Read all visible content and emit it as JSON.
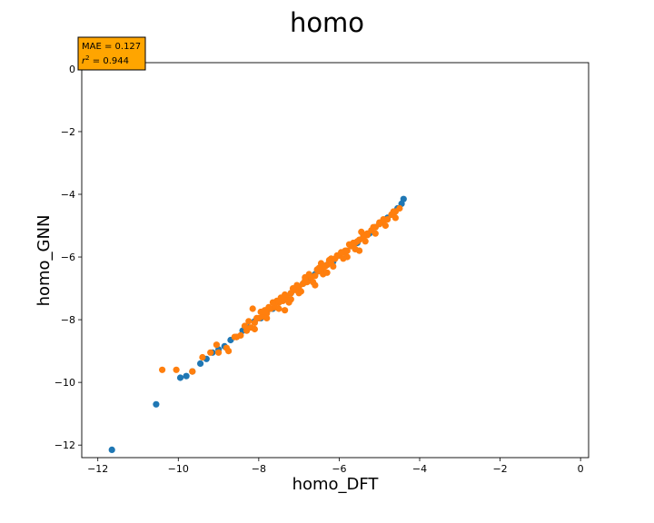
{
  "chart_data": {
    "type": "scatter",
    "title": "homo",
    "xlabel": "homo_DFT",
    "ylabel": "homo_GNN",
    "xlim": [
      -12.4,
      0.2
    ],
    "ylim": [
      -12.4,
      0.2
    ],
    "xticks": [
      -12,
      -10,
      -8,
      -6,
      -4,
      -2,
      0
    ],
    "yticks": [
      -12,
      -10,
      -8,
      -6,
      -4,
      -2,
      0
    ],
    "xtick_labels": [
      "−12",
      "−10",
      "−8",
      "−6",
      "−4",
      "−2",
      "0"
    ],
    "ytick_labels": [
      "−12",
      "−10",
      "−8",
      "−6",
      "−4",
      "−2",
      "0"
    ],
    "grid": false,
    "annotation": {
      "lines": [
        "MAE = 0.127",
        "r² = 0.944"
      ],
      "mae_label": "MAE = 0.127",
      "r2_symbol": "r",
      "r2_exponent": "2",
      "r2_value": " = 0.944",
      "background": "#ffa500"
    },
    "series": [
      {
        "color": "#1f77b4",
        "x": [
          -11.65,
          -10.55,
          -9.95,
          -9.8,
          -9.65,
          -9.45,
          -9.3,
          -9.15,
          -9.0,
          -8.85,
          -8.7,
          -8.55,
          -8.4,
          -8.25,
          -8.1,
          -7.95,
          -7.8,
          -7.65,
          -7.5,
          -7.35,
          -7.2,
          -7.05,
          -6.9,
          -6.75,
          -6.6,
          -6.45,
          -6.3,
          -6.15,
          -6.0,
          -5.85,
          -5.7,
          -5.55,
          -5.4,
          -5.25,
          -5.1,
          -4.95,
          -4.8,
          -4.65,
          -4.55,
          -4.45,
          -4.4
        ],
        "y": [
          -12.15,
          -10.7,
          -9.85,
          -9.8,
          -9.65,
          -9.4,
          -9.25,
          -9.05,
          -8.95,
          -8.85,
          -8.65,
          -8.55,
          -8.35,
          -8.25,
          -8.05,
          -7.95,
          -7.75,
          -7.65,
          -7.45,
          -7.35,
          -7.15,
          -7.05,
          -6.85,
          -6.75,
          -6.55,
          -6.45,
          -6.25,
          -6.15,
          -5.95,
          -5.85,
          -5.65,
          -5.55,
          -5.35,
          -5.25,
          -5.05,
          -4.9,
          -4.75,
          -4.6,
          -4.45,
          -4.3,
          -4.15
        ]
      },
      {
        "color": "#ff7f0e",
        "x": [
          -10.4,
          -10.05,
          -9.65,
          -9.4,
          -9.2,
          -9.05,
          -8.8,
          -8.6,
          -8.45,
          -8.3,
          -8.2,
          -8.1,
          -8.0,
          -7.9,
          -7.8,
          -7.7,
          -7.6,
          -7.5,
          -7.4,
          -7.3,
          -7.2,
          -7.1,
          -7.0,
          -6.9,
          -6.8,
          -6.7,
          -6.6,
          -6.5,
          -6.4,
          -6.3,
          -6.2,
          -6.1,
          -6.0,
          -5.9,
          -5.8,
          -5.7,
          -5.6,
          -5.5,
          -5.4,
          -5.3,
          -5.2,
          -5.1,
          -5.0,
          -4.9,
          -4.8,
          -4.7,
          -4.6,
          -4.5,
          -8.25,
          -7.95,
          -7.6,
          -7.35,
          -7.05,
          -6.85,
          -6.55,
          -6.35,
          -6.05,
          -5.85,
          -5.55,
          -5.3,
          -5.0,
          -4.7,
          -8.1,
          -7.8,
          -7.5,
          -7.2,
          -6.95,
          -6.65,
          -6.4,
          -6.15,
          -5.9,
          -5.6,
          -5.35,
          -5.1,
          -4.85,
          -4.6,
          -8.35,
          -8.05,
          -7.75,
          -7.45,
          -7.15,
          -6.85,
          -6.5,
          -6.2,
          -5.95,
          -5.65,
          -5.4,
          -5.15,
          -4.9,
          -4.65,
          -9.0,
          -8.75,
          -8.55,
          -7.85,
          -7.55,
          -7.25,
          -6.75,
          -6.45,
          -6.25,
          -5.75,
          -5.45,
          -8.15,
          -7.65,
          -7.35,
          -7.0,
          -6.6,
          -6.3,
          -5.8,
          -5.5
        ],
        "y": [
          -9.6,
          -9.6,
          -9.65,
          -9.2,
          -9.05,
          -8.8,
          -8.9,
          -8.55,
          -8.5,
          -8.35,
          -8.25,
          -8.1,
          -7.95,
          -7.9,
          -7.8,
          -7.65,
          -7.6,
          -7.45,
          -7.4,
          -7.3,
          -7.15,
          -7.05,
          -6.95,
          -6.85,
          -6.8,
          -6.65,
          -6.6,
          -6.45,
          -6.35,
          -6.25,
          -6.2,
          -6.05,
          -5.95,
          -5.85,
          -5.8,
          -5.65,
          -5.55,
          -5.45,
          -5.4,
          -5.3,
          -5.15,
          -5.05,
          -4.95,
          -4.85,
          -4.8,
          -4.65,
          -4.55,
          -4.45,
          -8.05,
          -7.75,
          -7.45,
          -7.2,
          -6.9,
          -6.75,
          -6.4,
          -6.3,
          -5.95,
          -5.8,
          -5.5,
          -5.25,
          -4.9,
          -4.65,
          -8.3,
          -7.95,
          -7.65,
          -7.35,
          -7.1,
          -6.8,
          -6.55,
          -6.3,
          -6.05,
          -5.75,
          -5.5,
          -5.25,
          -5.0,
          -4.75,
          -8.2,
          -7.95,
          -7.6,
          -7.3,
          -7.0,
          -6.65,
          -6.35,
          -6.05,
          -5.85,
          -5.55,
          -5.3,
          -5.05,
          -4.8,
          -4.55,
          -9.05,
          -9.0,
          -8.55,
          -7.7,
          -7.4,
          -7.45,
          -6.55,
          -6.2,
          -6.1,
          -5.6,
          -5.2,
          -7.65,
          -7.45,
          -7.7,
          -7.15,
          -6.9,
          -6.5,
          -6.0,
          -5.8
        ]
      }
    ]
  }
}
